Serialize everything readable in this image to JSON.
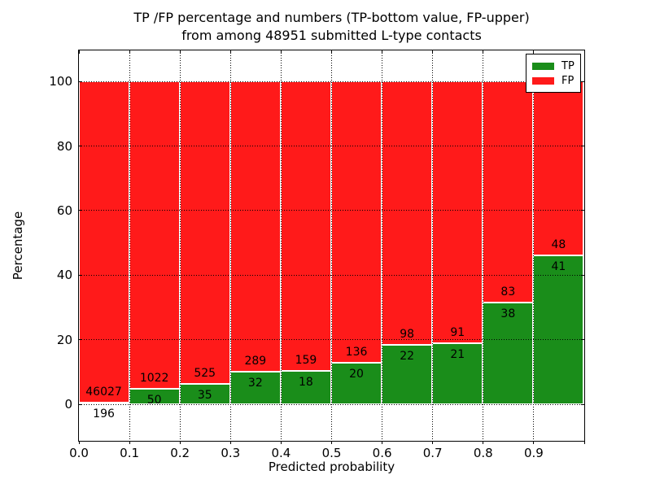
{
  "title": {
    "line1": "TP /FP percentage and numbers (TP-bottom value, FP-upper)",
    "line2": "from among 48951 submitted L-type contacts"
  },
  "axes": {
    "xlabel": "Predicted probability",
    "ylabel": "Percentage"
  },
  "legend": {
    "position": "upper right",
    "entries": [
      {
        "label": "TP",
        "color": "#1a8d1a"
      },
      {
        "label": "FP",
        "color": "#ff1a1a"
      }
    ]
  },
  "chart_data": {
    "type": "bar",
    "stacked": true,
    "normalized_to_percent": 100,
    "title": "TP /FP percentage and numbers (TP-bottom value, FP-upper) from among 48951 submitted L-type contacts",
    "xlabel": "Predicted probability",
    "ylabel": "Percentage",
    "total_contacts": 48951,
    "bin_edges": [
      0.0,
      0.1,
      0.2,
      0.3,
      0.4,
      0.5,
      0.6,
      0.7,
      0.8,
      0.9,
      1.0
    ],
    "series": [
      {
        "name": "TP",
        "color": "#1a8d1a",
        "counts": [
          196,
          50,
          35,
          32,
          18,
          20,
          22,
          21,
          38,
          41
        ]
      },
      {
        "name": "FP",
        "color": "#ff1a1a",
        "counts": [
          46027,
          1022,
          525,
          289,
          159,
          136,
          98,
          91,
          83,
          48
        ]
      }
    ],
    "tp_percent": [
      0.42,
      4.66,
      6.25,
      9.97,
      10.17,
      12.82,
      18.33,
      18.75,
      31.4,
      46.07
    ],
    "xticks": [
      "0.0",
      "0.1",
      "0.2",
      "0.3",
      "0.4",
      "0.5",
      "0.6",
      "0.7",
      "0.8",
      "0.9"
    ],
    "yticks": [
      0,
      20,
      40,
      60,
      80,
      100
    ],
    "xlim": [
      0.0,
      1.0
    ],
    "ylim": [
      -11.3,
      109.6
    ],
    "grid": true,
    "grid_style": "dotted",
    "legend_position": "upper right"
  }
}
